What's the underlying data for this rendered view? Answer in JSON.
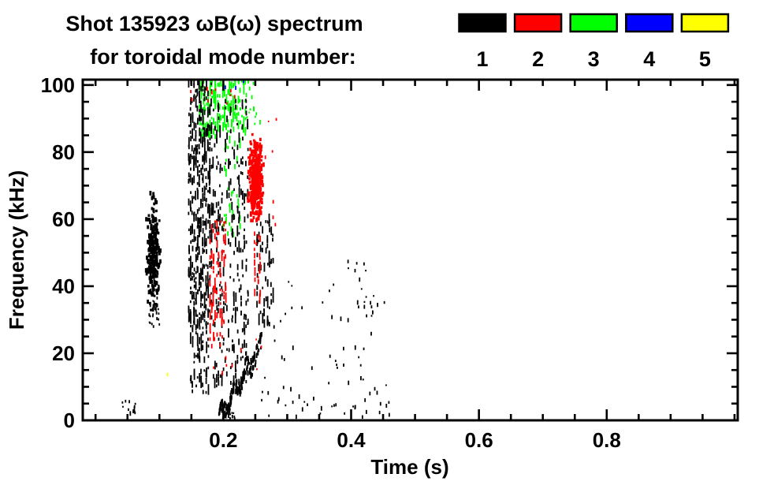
{
  "title": {
    "line1": "Shot 135923 ωB(ω) spectrum",
    "line2": "for toroidal mode number:"
  },
  "legend": {
    "entries": [
      {
        "label": "1",
        "color": "#000000"
      },
      {
        "label": "2",
        "color": "#ff0000"
      },
      {
        "label": "3",
        "color": "#00ff00"
      },
      {
        "label": "4",
        "color": "#0000ff"
      },
      {
        "label": "5",
        "color": "#ffff00"
      }
    ]
  },
  "axes": {
    "x": {
      "label": "Time (s)",
      "range": [
        -0.02,
        1.005
      ],
      "major_ticks": [
        0.2,
        0.4,
        0.6,
        0.8
      ],
      "major_tick_labels": [
        "0.2",
        "0.4",
        "0.6",
        "0.8"
      ],
      "minor_tick_step": 0.05
    },
    "y": {
      "label": "Frequency (kHz)",
      "range": [
        0,
        101.6
      ],
      "major_ticks": [
        0,
        20,
        40,
        60,
        80,
        100
      ],
      "major_tick_labels": [
        "0",
        "20",
        "40",
        "60",
        "80",
        "100"
      ],
      "minor_tick_step": 5
    }
  },
  "chart_data": {
    "type": "scatter",
    "subtype": "mode-resolved magnetic spectrogram (points colored by toroidal mode number)",
    "title": "Shot 135923 ωB(ω) spectrum for toroidal mode number 1-5",
    "xlabel": "Time (s)",
    "ylabel": "Frequency (kHz)",
    "xlim": [
      -0.02,
      1.005
    ],
    "ylim": [
      0,
      101.6
    ],
    "grid": false,
    "legend_position": "top-right, swatches with mode numbers 1-5 beneath",
    "series": [
      {
        "name": "n=1",
        "color": "#000000"
      },
      {
        "name": "n=2",
        "color": "#ff0000"
      },
      {
        "name": "n=3",
        "color": "#00ff00"
      },
      {
        "name": "n=4",
        "color": "#0000ff"
      },
      {
        "name": "n=5",
        "color": "#ffff00"
      }
    ],
    "representation": "density clusters: each feature is a burst of spectral points; t=time range (s), f=frequency range (kHz), n=approx point count",
    "features": [
      {
        "mode": 3,
        "style": "streaks",
        "t": [
          0.162,
          0.19
        ],
        "f": [
          84,
          101.6
        ],
        "n": 100,
        "seed": 41
      },
      {
        "mode": 3,
        "style": "streaks",
        "t": [
          0.19,
          0.235
        ],
        "f": [
          86,
          101.6
        ],
        "n": 110,
        "seed": 42
      },
      {
        "mode": 3,
        "style": "streaks",
        "t": [
          0.198,
          0.228
        ],
        "f": [
          55,
          86
        ],
        "n": 32,
        "seed": 43
      },
      {
        "mode": 3,
        "style": "dots",
        "t": [
          0.235,
          0.258
        ],
        "f": [
          88,
          101
        ],
        "n": 14,
        "seed": 44
      },
      {
        "mode": 1,
        "style": "dots",
        "t": [
          0.042,
          0.065
        ],
        "f": [
          2,
          6
        ],
        "n": 12,
        "seed": 11
      },
      {
        "mode": 1,
        "style": "blob",
        "t": [
          0.076,
          0.104
        ],
        "f": [
          30,
          70
        ],
        "n": 240,
        "seed": 12
      },
      {
        "mode": 1,
        "style": "dots",
        "t": [
          0.084,
          0.1
        ],
        "f": [
          28,
          44
        ],
        "n": 40,
        "seed": 13
      },
      {
        "mode": 1,
        "style": "streaks",
        "t": [
          0.145,
          0.183
        ],
        "f": [
          28,
          101.6
        ],
        "n": 430,
        "seed": 14
      },
      {
        "mode": 1,
        "style": "streaks",
        "t": [
          0.148,
          0.178
        ],
        "f": [
          8,
          28
        ],
        "n": 55,
        "seed": 15
      },
      {
        "mode": 1,
        "style": "streaks",
        "t": [
          0.183,
          0.24
        ],
        "f": [
          10,
          96
        ],
        "n": 260,
        "seed": 16
      },
      {
        "mode": 1,
        "style": "streaks",
        "t": [
          0.252,
          0.28
        ],
        "f": [
          28,
          62
        ],
        "n": 70,
        "seed": 17
      },
      {
        "mode": 1,
        "style": "chirp",
        "t": [
          0.193,
          0.26
        ],
        "f": [
          2,
          23
        ],
        "n": 170,
        "seed": 18
      },
      {
        "mode": 1,
        "style": "dots",
        "t": [
          0.197,
          0.218
        ],
        "f": [
          0.5,
          3.5
        ],
        "n": 26,
        "seed": 19
      },
      {
        "mode": 1,
        "style": "dots",
        "t": [
          0.26,
          0.46
        ],
        "f": [
          1,
          13
        ],
        "n": 42,
        "seed": 20
      },
      {
        "mode": 1,
        "style": "dots",
        "t": [
          0.27,
          0.4
        ],
        "f": [
          14,
          48
        ],
        "n": 26,
        "seed": 21
      },
      {
        "mode": 1,
        "style": "dots",
        "t": [
          0.405,
          0.425
        ],
        "f": [
          16,
          48
        ],
        "n": 16,
        "seed": 22
      },
      {
        "mode": 1,
        "style": "dots",
        "t": [
          0.43,
          0.452
        ],
        "f": [
          20,
          42
        ],
        "n": 8,
        "seed": 23
      },
      {
        "mode": 2,
        "style": "streaks",
        "t": [
          0.178,
          0.205
        ],
        "f": [
          22,
          60
        ],
        "n": 90,
        "seed": 31
      },
      {
        "mode": 2,
        "style": "blob",
        "t": [
          0.236,
          0.265
        ],
        "f": [
          55,
          88
        ],
        "n": 380,
        "seed": 32
      },
      {
        "mode": 2,
        "style": "streaks",
        "t": [
          0.248,
          0.258
        ],
        "f": [
          36,
          56
        ],
        "n": 24,
        "seed": 33
      },
      {
        "mode": 2,
        "style": "dots",
        "t": [
          0.18,
          0.26
        ],
        "f": [
          13,
          25
        ],
        "n": 10,
        "seed": 34
      },
      {
        "mode": 2,
        "style": "dots",
        "t": [
          0.145,
          0.23
        ],
        "f": [
          94,
          101.6
        ],
        "n": 12,
        "seed": 35
      },
      {
        "mode": 2,
        "style": "dots",
        "t": [
          0.262,
          0.285
        ],
        "f": [
          58,
          90
        ],
        "n": 7,
        "seed": 36
      },
      {
        "mode": 4,
        "style": "dots",
        "t": [
          0.2,
          0.232
        ],
        "f": [
          99,
          101.5
        ],
        "n": 3,
        "seed": 51
      },
      {
        "mode": 5,
        "style": "dots",
        "t": [
          0.111,
          0.115
        ],
        "f": [
          13.5,
          14.8
        ],
        "n": 1,
        "seed": 52
      }
    ]
  }
}
